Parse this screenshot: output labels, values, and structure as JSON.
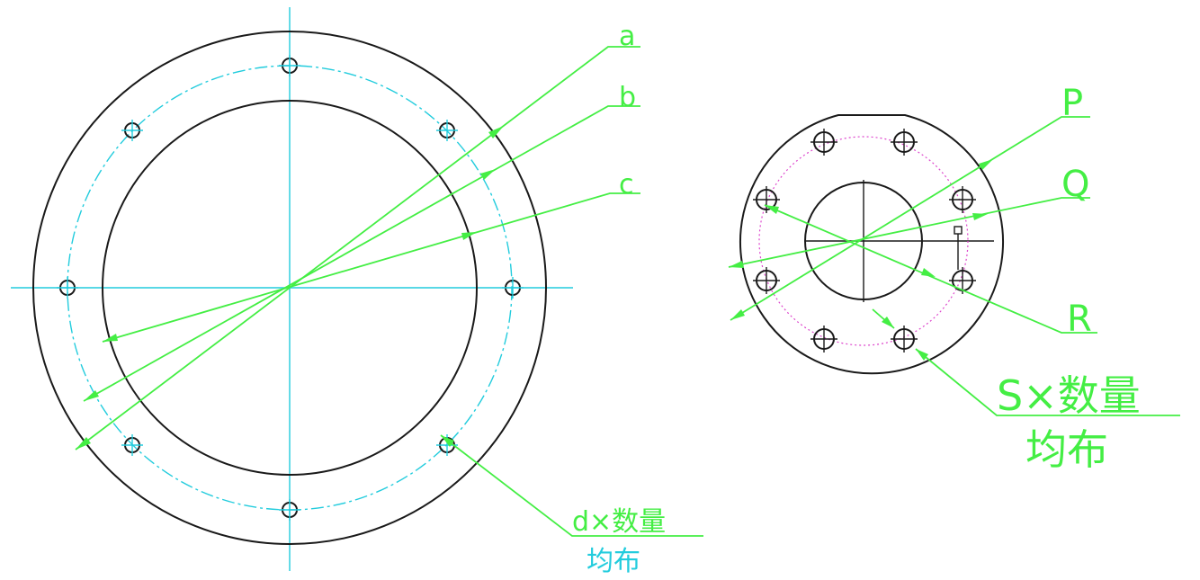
{
  "left_drawing": {
    "leader_labels": [
      "a",
      "b",
      "c"
    ],
    "hole_note": {
      "line1": "d×数量",
      "line2": "均布"
    }
  },
  "right_drawing": {
    "leader_labels": [
      "P",
      "Q",
      "R"
    ],
    "hole_note": {
      "line1": "S×数量",
      "line2": "均布"
    }
  },
  "colors": {
    "outline": "#1a1a1a",
    "centerline": "#22ccdd",
    "leader": "#44ee44",
    "pitch_circle_right": "#dd44cc"
  }
}
